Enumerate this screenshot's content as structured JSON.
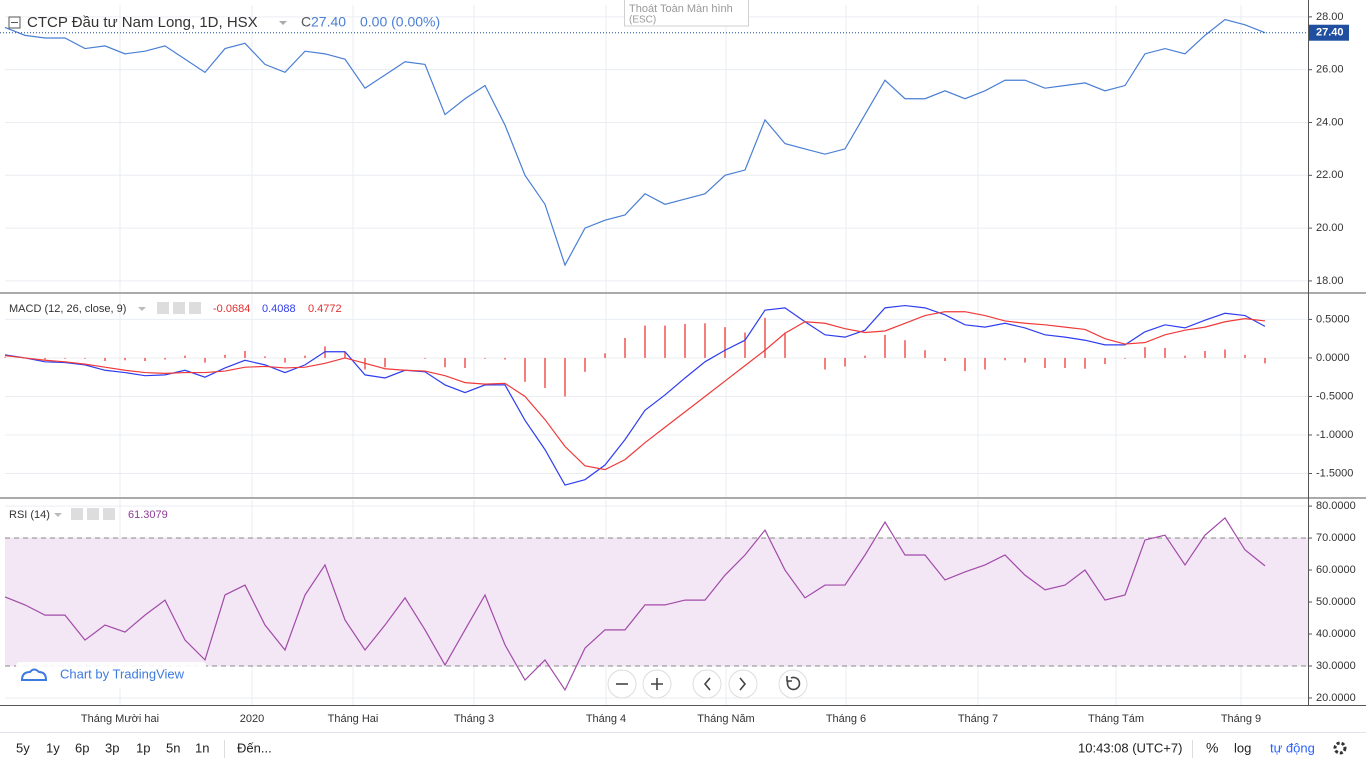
{
  "chart_data": [
    {
      "type": "line",
      "title": "CTCP Đầu tư Nam Long, 1D, HSX",
      "ohlc_label": "C",
      "close_label": "27.40",
      "change_label": "0.00 (0.00%)",
      "xlim": [
        0,
        65.15
      ],
      "ylim": [
        17.58,
        28.45
      ],
      "yticks": [
        {
          "value": 18,
          "label": "18.00"
        },
        {
          "value": 20,
          "label": "20.00"
        },
        {
          "value": 22,
          "label": "22.00"
        },
        {
          "value": 24,
          "label": "24.00"
        },
        {
          "value": 26,
          "label": "26.00"
        },
        {
          "value": 28,
          "label": "28.00"
        }
      ],
      "series": [
        {
          "color": "#4a7fd4",
          "values": [
            27.6,
            27.3,
            27.2,
            27.2,
            26.8,
            26.9,
            26.6,
            26.7,
            26.9,
            26.4,
            25.9,
            26.8,
            27.0,
            26.2,
            25.9,
            26.7,
            26.6,
            26.4,
            25.3,
            25.8,
            26.3,
            26.2,
            24.3,
            24.9,
            25.4,
            23.9,
            22.0,
            20.9,
            18.6,
            20.0,
            20.3,
            20.5,
            21.3,
            20.9,
            21.1,
            21.3,
            22.0,
            22.2,
            24.1,
            23.2,
            23.0,
            22.8,
            23.0,
            24.3,
            25.6,
            24.9,
            24.9,
            25.2,
            24.9,
            25.2,
            25.6,
            25.6,
            25.3,
            25.4,
            25.5,
            25.2,
            25.4,
            26.6,
            26.8,
            26.6,
            27.3,
            27.9,
            27.7,
            27.4
          ]
        }
      ]
    },
    {
      "type": "macd",
      "title": "MACD (12, 26, close, 9)",
      "legend_values": [
        "-0.0684",
        "0.4088",
        "0.4772"
      ],
      "xlim": [
        0,
        65.15
      ],
      "ylim": [
        -1.805,
        0.83
      ],
      "yticks": [
        {
          "value": 0.5,
          "label": "0.5000"
        },
        {
          "value": 0,
          "label": "0.0000"
        },
        {
          "value": -0.5,
          "label": "-0.5000"
        },
        {
          "value": -1,
          "label": "-1.0000"
        },
        {
          "value": -1.5,
          "label": "-1.5000"
        }
      ],
      "series": [
        {
          "style": "histogram",
          "color": "#ef5350",
          "values": [
            0.01,
            0,
            -0.02,
            -0.01,
            -0.01,
            -0.04,
            -0.03,
            -0.04,
            -0.02,
            0.03,
            -0.06,
            0.04,
            0.09,
            0.02,
            -0.06,
            0.03,
            0.15,
            0.08,
            -0.15,
            -0.12,
            0,
            -0.01,
            -0.12,
            -0.13,
            -0.01,
            -0.02,
            -0.31,
            -0.39,
            -0.5,
            -0.18,
            0.06,
            0.26,
            0.42,
            0.42,
            0.44,
            0.45,
            0.4,
            0.33,
            0.52,
            0.33,
            0,
            -0.15,
            -0.11,
            0.03,
            0.3,
            0.23,
            0.1,
            -0.04,
            -0.17,
            -0.15,
            -0.03,
            -0.06,
            -0.13,
            -0.13,
            -0.14,
            -0.08,
            -0.01,
            0.14,
            0.13,
            0.03,
            0.09,
            0.11,
            0.04,
            -0.07
          ]
        },
        {
          "style": "line",
          "color": "#2f3df0",
          "values": [
            0.04,
            0,
            -0.05,
            -0.06,
            -0.09,
            -0.16,
            -0.19,
            -0.23,
            -0.22,
            -0.16,
            -0.25,
            -0.13,
            -0.03,
            -0.09,
            -0.19,
            -0.09,
            0.08,
            0.08,
            -0.22,
            -0.26,
            -0.16,
            -0.18,
            -0.35,
            -0.45,
            -0.35,
            -0.35,
            -0.81,
            -1.19,
            -1.65,
            -1.58,
            -1.39,
            -1.06,
            -0.68,
            -0.48,
            -0.26,
            -0.05,
            0.1,
            0.23,
            0.62,
            0.65,
            0.47,
            0.3,
            0.27,
            0.36,
            0.65,
            0.68,
            0.65,
            0.56,
            0.43,
            0.4,
            0.45,
            0.39,
            0.3,
            0.27,
            0.23,
            0.17,
            0.17,
            0.34,
            0.43,
            0.39,
            0.49,
            0.58,
            0.55,
            0.41
          ]
        },
        {
          "style": "line",
          "color": "#f03a3a",
          "values": [
            0.03,
            0,
            -0.03,
            -0.05,
            -0.08,
            -0.12,
            -0.16,
            -0.19,
            -0.2,
            -0.19,
            -0.19,
            -0.17,
            -0.12,
            -0.11,
            -0.13,
            -0.12,
            -0.07,
            0,
            -0.07,
            -0.14,
            -0.16,
            -0.17,
            -0.23,
            -0.32,
            -0.34,
            -0.33,
            -0.5,
            -0.8,
            -1.15,
            -1.4,
            -1.45,
            -1.32,
            -1.1,
            -0.9,
            -0.7,
            -0.5,
            -0.3,
            -0.1,
            0.1,
            0.32,
            0.47,
            0.45,
            0.38,
            0.33,
            0.35,
            0.45,
            0.55,
            0.6,
            0.6,
            0.55,
            0.48,
            0.45,
            0.43,
            0.4,
            0.37,
            0.25,
            0.18,
            0.2,
            0.3,
            0.36,
            0.4,
            0.47,
            0.51,
            0.48
          ]
        }
      ]
    },
    {
      "type": "rsi",
      "title": "RSI (14)",
      "legend_values": [
        "61.3079"
      ],
      "xlim": [
        0,
        65.15
      ],
      "ylim": [
        17.8,
        81.9
      ],
      "bands": [
        30,
        70
      ],
      "band_color": "#f3e6f5",
      "yticks": [
        {
          "value": 20,
          "label": "20.0000"
        },
        {
          "value": 30,
          "label": "30.0000"
        },
        {
          "value": 40,
          "label": "40.0000"
        },
        {
          "value": 50,
          "label": "50.0000"
        },
        {
          "value": 60,
          "label": "60.0000"
        },
        {
          "value": 70,
          "label": "70.0000"
        },
        {
          "value": 80,
          "label": "80.0000"
        }
      ],
      "xticks": [
        {
          "value": 5.75,
          "label": "Tháng Mười hai"
        },
        {
          "value": 12.35,
          "label": "2020"
        },
        {
          "value": 17.4,
          "label": "Tháng Hai"
        },
        {
          "value": 23.45,
          "label": "Tháng 3"
        },
        {
          "value": 30.05,
          "label": "Tháng 4"
        },
        {
          "value": 36.05,
          "label": "Tháng Năm"
        },
        {
          "value": 42.05,
          "label": "Tháng 6"
        },
        {
          "value": 48.65,
          "label": "Tháng 7"
        },
        {
          "value": 55.55,
          "label": "Tháng Tám"
        },
        {
          "value": 61.8,
          "label": "Tháng 9"
        }
      ],
      "series": [
        {
          "style": "line",
          "color": "#a14ba8",
          "values": [
            51.6,
            49.1,
            45.9,
            45.9,
            38.1,
            42.8,
            40.6,
            45.9,
            50.6,
            38.1,
            31.9,
            52.2,
            55.3,
            42.8,
            35.0,
            52.2,
            61.6,
            44.4,
            35.0,
            42.8,
            51.3,
            41.3,
            30.3,
            41.3,
            52.2,
            36.6,
            25.6,
            31.9,
            22.5,
            35.6,
            41.3,
            41.3,
            49.1,
            49.1,
            50.6,
            50.6,
            58.4,
            64.7,
            72.5,
            60.0,
            51.3,
            55.3,
            55.3,
            64.7,
            75.0,
            64.7,
            64.7,
            56.9,
            59.4,
            61.6,
            64.7,
            58.4,
            53.8,
            55.3,
            60.0,
            50.6,
            52.2,
            69.4,
            70.9,
            61.6,
            70.9,
            76.3,
            66.3,
            61.3
          ]
        }
      ]
    }
  ],
  "fullscreen_hint": {
    "text": "Thoát Toàn Màn hình",
    "key": "(ESC)"
  },
  "watermark": "Chart by TradingView",
  "toolbar": {
    "ranges": [
      "5y",
      "1y",
      "6p",
      "3p",
      "1p",
      "5n",
      "1n"
    ],
    "goto": "Đến...",
    "clock": "10:43:08 (UTC+7)",
    "percent": "%",
    "log": "log",
    "auto": "tự động"
  }
}
